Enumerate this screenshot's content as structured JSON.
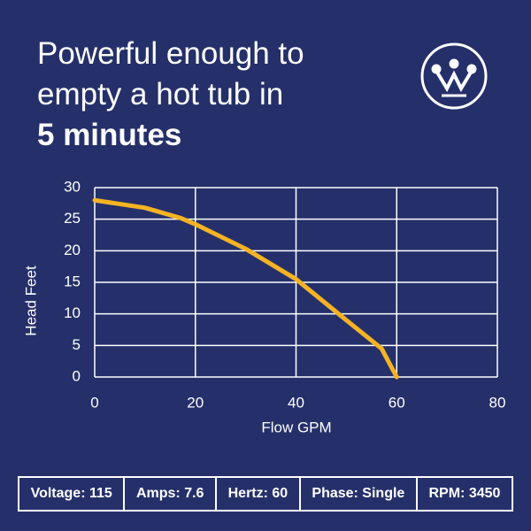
{
  "chart_data": {
    "type": "line",
    "title": "Powerful enough to empty a hot tub in",
    "title_emphasis": "5 minutes",
    "x_label": "Flow GPM",
    "y_label": "Head Feet",
    "x": [
      0,
      10,
      17,
      20,
      30,
      40,
      50,
      57,
      60
    ],
    "series": [
      {
        "color": "#f5b324",
        "values": [
          28,
          26.8,
          25.2,
          24.2,
          20.3,
          15.5,
          9,
          4.5,
          0
        ]
      }
    ],
    "xlim": [
      0,
      80
    ],
    "xticks": [
      0,
      20,
      40,
      60,
      80
    ],
    "ylim": [
      0,
      30
    ],
    "yticks": [
      0,
      5,
      10,
      15,
      20,
      25,
      30
    ],
    "grid": true
  },
  "specs": [
    "Voltage: 115",
    "Amps: 7.6",
    "Hertz: 60",
    "Phase: Single",
    "RPM: 3450"
  ]
}
